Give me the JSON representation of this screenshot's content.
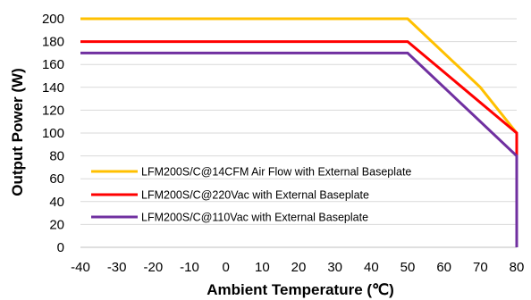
{
  "chart_data": {
    "type": "line",
    "xlabel": "Ambient  Temperature (℃)",
    "ylabel": "Output Power (W)",
    "xlim": [
      -40,
      80
    ],
    "ylim": [
      0,
      200
    ],
    "xticks": [
      "-40",
      "-30",
      "-20",
      "-10",
      "0",
      "10",
      "20",
      "30",
      "40",
      "50",
      "60",
      "70",
      "80"
    ],
    "yticks": [
      "0",
      "20",
      "40",
      "60",
      "80",
      "100",
      "120",
      "140",
      "160",
      "180",
      "200"
    ],
    "grid": "horizontal",
    "legend_position": "bottom-left",
    "series": [
      {
        "name": "LFM200S/C@14CFM Air Flow with External Baseplate",
        "color": "#FFC000",
        "points": [
          [
            -40,
            200
          ],
          [
            50,
            200
          ],
          [
            70,
            140
          ],
          [
            80,
            100
          ],
          [
            80,
            0
          ]
        ]
      },
      {
        "name": "LFM200S/C@220Vac with External Baseplate",
        "color": "#FF0000",
        "points": [
          [
            -40,
            180
          ],
          [
            50,
            180
          ],
          [
            80,
            100
          ],
          [
            80,
            0
          ]
        ]
      },
      {
        "name": "LFM200S/C@110Vac with External Baseplate",
        "color": "#7030A0",
        "points": [
          [
            -40,
            170
          ],
          [
            50,
            170
          ],
          [
            80,
            80
          ],
          [
            80,
            0
          ]
        ]
      }
    ]
  }
}
